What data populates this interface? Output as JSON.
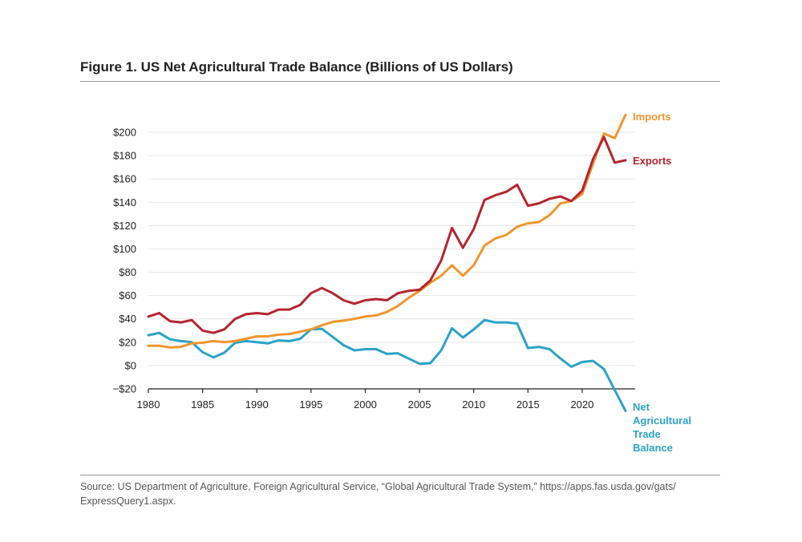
{
  "figure": {
    "title": "Figure 1. US Net Agricultural Trade Balance (Billions of US Dollars)",
    "source_line1": "Source: US Department of Agriculture, Foreign Agricultural Service, “Global Agricultural Trade System,” https://apps.fas.usda.gov/gats/",
    "source_line2": "ExpressQuery1.aspx."
  },
  "colors": {
    "imports": "#F0962E",
    "exports": "#B5242F",
    "net": "#2BA2C9",
    "grid": "#e6e6e6",
    "axis": "#222222"
  },
  "chart_data": {
    "type": "line",
    "title": "Figure 1. US Net Agricultural Trade Balance (Billions of US Dollars)",
    "xlabel": "",
    "ylabel": "",
    "xlim": [
      1980,
      2024
    ],
    "ylim": [
      -20,
      200
    ],
    "grid": true,
    "x_ticks": [
      1980,
      1985,
      1990,
      1995,
      2000,
      2005,
      2010,
      2015,
      2020
    ],
    "x_tick_labels": [
      "1980",
      "1985",
      "1990",
      "1995",
      "2000",
      "2005",
      "2010",
      "2015",
      "2020"
    ],
    "y_ticks": [
      -20,
      0,
      20,
      40,
      60,
      80,
      100,
      120,
      140,
      160,
      180,
      200
    ],
    "y_tick_labels": [
      "−$20",
      "$0",
      "$20",
      "$40",
      "$60",
      "$80",
      "$100",
      "$120",
      "$140",
      "$160",
      "$180",
      "$200"
    ],
    "x": [
      1980,
      1981,
      1982,
      1983,
      1984,
      1985,
      1986,
      1987,
      1988,
      1989,
      1990,
      1991,
      1992,
      1993,
      1994,
      1995,
      1996,
      1997,
      1998,
      1999,
      2000,
      2001,
      2002,
      2003,
      2004,
      2005,
      2006,
      2007,
      2008,
      2009,
      2010,
      2011,
      2012,
      2013,
      2014,
      2015,
      2016,
      2017,
      2018,
      2019,
      2020,
      2021,
      2022,
      2023,
      2024
    ],
    "series": [
      {
        "name": "Imports",
        "label_lines": [
          "Imports"
        ],
        "color": "#F0962E",
        "values": [
          17,
          17,
          15.5,
          16,
          19,
          19.5,
          21,
          20,
          21,
          23,
          25,
          25,
          26.5,
          27,
          29,
          31,
          34.5,
          37.5,
          38.5,
          40,
          42,
          43,
          46,
          51,
          58,
          64,
          71,
          77,
          86,
          77,
          86,
          103,
          109,
          112,
          119,
          122,
          123,
          129,
          139,
          141,
          147,
          173,
          199,
          195,
          215
        ]
      },
      {
        "name": "Exports",
        "label_lines": [
          "Exports"
        ],
        "color": "#B5242F",
        "values": [
          42,
          45,
          38,
          37,
          39,
          30,
          28,
          31,
          40,
          44,
          45,
          44,
          48,
          48,
          52,
          62,
          66.5,
          62,
          56,
          53,
          56,
          57,
          56,
          62,
          64,
          65,
          73,
          90,
          118,
          101,
          117,
          142,
          146,
          149,
          155,
          137,
          139,
          143,
          145,
          141,
          150,
          177,
          196,
          174,
          176
        ]
      },
      {
        "name": "Net Agricultural Trade Balance",
        "label_lines": [
          "Net",
          "Agricultural",
          "Trade",
          "Balance"
        ],
        "color": "#2BA2C9",
        "values": [
          26,
          28,
          22.5,
          21,
          20,
          11.5,
          7,
          11,
          19.5,
          21,
          20,
          19,
          21.5,
          21,
          23,
          31,
          31.5,
          24.5,
          17.5,
          13,
          14,
          14,
          10,
          10.5,
          6,
          1.5,
          2,
          13,
          32,
          24,
          31,
          39,
          37,
          37,
          36,
          15,
          16,
          14,
          6,
          -1,
          3,
          4,
          -3,
          -21,
          -39
        ]
      }
    ]
  }
}
